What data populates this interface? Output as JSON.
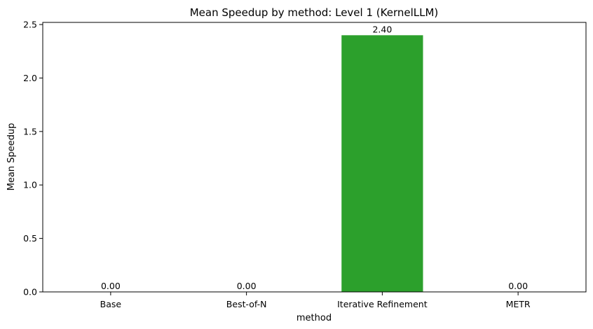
{
  "chart_data": {
    "type": "bar",
    "title": "Mean Speedup by method: Level 1 (KernelLLM)",
    "xlabel": "method",
    "ylabel": "Mean Speedup",
    "categories": [
      "Base",
      "Best-of-N",
      "Iterative Refinement",
      "METR"
    ],
    "values": [
      0.0,
      0.0,
      2.4,
      0.0
    ],
    "value_labels": [
      "0.00",
      "0.00",
      "2.40",
      "0.00"
    ],
    "bar_colors": [
      "#1f77b4",
      "#ff7f0e",
      "#2ca02c",
      "#d62728"
    ],
    "ylim": [
      0,
      2.52
    ],
    "yticks": [
      0.0,
      0.5,
      1.0,
      1.5,
      2.0,
      2.5
    ],
    "ytick_labels": [
      "0.0",
      "0.5",
      "1.0",
      "1.5",
      "2.0",
      "2.5"
    ],
    "grid": false,
    "legend": "none"
  }
}
